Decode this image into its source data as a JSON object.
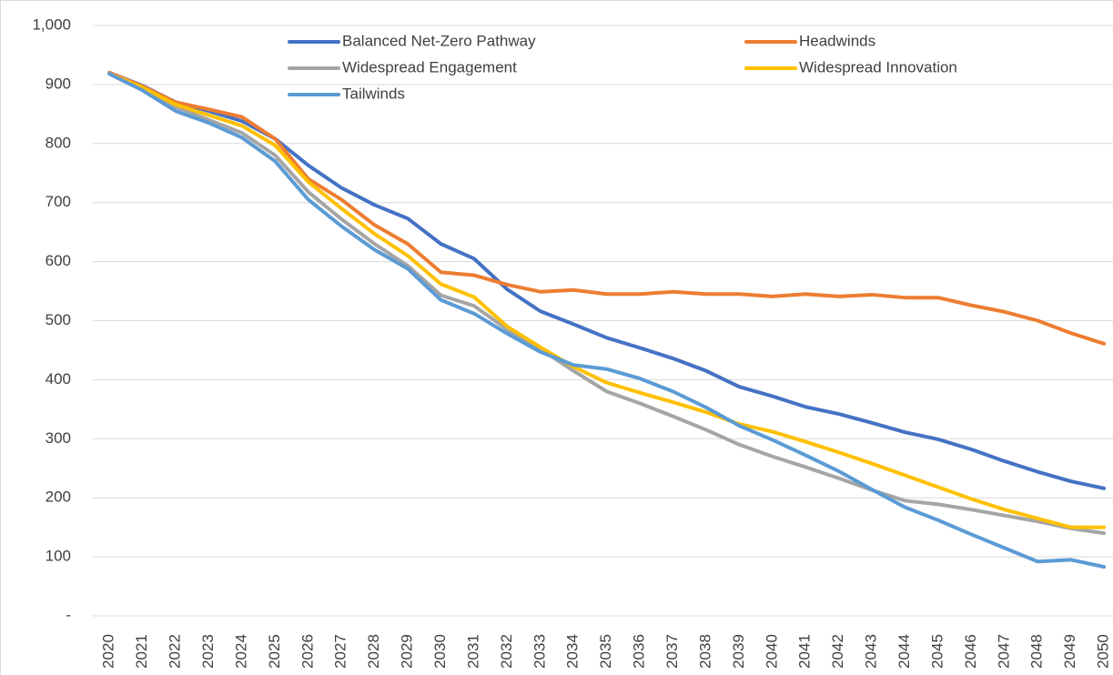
{
  "chart_data": {
    "type": "line",
    "categories": [
      "2020",
      "2021",
      "2022",
      "2023",
      "2024",
      "2025",
      "2026",
      "2027",
      "2028",
      "2029",
      "2030",
      "2031",
      "2032",
      "2033",
      "2034",
      "2035",
      "2036",
      "2037",
      "2038",
      "2039",
      "2040",
      "2041",
      "2042",
      "2043",
      "2044",
      "2045",
      "2046",
      "2047",
      "2048",
      "2049",
      "2050"
    ],
    "series": [
      {
        "name": "Balanced Net-Zero Pathway",
        "color": "#4472c4",
        "values": [
          920,
          898,
          870,
          855,
          838,
          808,
          763,
          725,
          696,
          673,
          630,
          605,
          553,
          516,
          494,
          471,
          454,
          436,
          415,
          388,
          372,
          354,
          342,
          327,
          311,
          299,
          282,
          262,
          244,
          228,
          216
        ]
      },
      {
        "name": "Headwinds",
        "color": "#ed7d31",
        "values": [
          920,
          897,
          870,
          858,
          845,
          808,
          740,
          705,
          662,
          630,
          582,
          577,
          561,
          549,
          552,
          545,
          545,
          549,
          545,
          545,
          541,
          545,
          541,
          544,
          539,
          539,
          526,
          515,
          500,
          479,
          461
        ]
      },
      {
        "name": "Widespread Engagement",
        "color": "#a5a5a5",
        "values": [
          918,
          893,
          862,
          840,
          818,
          780,
          718,
          672,
          630,
          593,
          543,
          525,
          485,
          452,
          415,
          380,
          360,
          338,
          315,
          290,
          270,
          252,
          233,
          213,
          195,
          189,
          180,
          170,
          160,
          148,
          140
        ]
      },
      {
        "name": "Widespread Innovation",
        "color": "#ffc000",
        "values": [
          918,
          895,
          866,
          848,
          830,
          797,
          735,
          690,
          647,
          610,
          562,
          540,
          490,
          455,
          422,
          395,
          378,
          362,
          345,
          325,
          312,
          295,
          277,
          258,
          238,
          218,
          198,
          180,
          165,
          150,
          150
        ]
      },
      {
        "name": "Tailwinds",
        "color": "#5b9bd5",
        "values": [
          918,
          890,
          855,
          835,
          810,
          770,
          705,
          660,
          620,
          588,
          535,
          512,
          478,
          447,
          425,
          418,
          402,
          380,
          353,
          322,
          298,
          272,
          245,
          214,
          184,
          162,
          138,
          115,
          92,
          95,
          83
        ]
      }
    ],
    "ylim": [
      0,
      1000
    ],
    "yticks": [
      {
        "value": 0,
        "label": "-"
      },
      100,
      200,
      300,
      400,
      500,
      600,
      700,
      800,
      900,
      {
        "value": 1000,
        "label": "1,000"
      }
    ],
    "grid": true,
    "legend": "top"
  }
}
